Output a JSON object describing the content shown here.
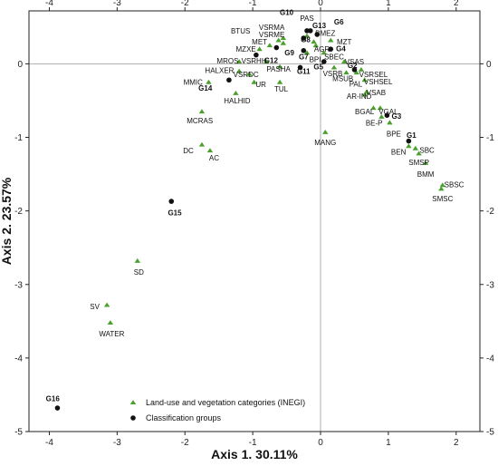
{
  "chart_data": {
    "type": "scatter",
    "xlabel": "Axis 1. 30.11%",
    "ylabel": "Axis 2. 23.57%",
    "xlim": [
      -4.3,
      2.35
    ],
    "ylim": [
      -5.0,
      0.72
    ],
    "xticks": [
      -4,
      -3,
      -2,
      -1,
      0,
      1,
      2
    ],
    "yticks": [
      -5,
      -4,
      -3,
      -2,
      -1,
      0
    ],
    "reference_lines": {
      "x": 0,
      "y": 0
    },
    "legend_position": "bottom-left",
    "colors": {
      "landuse": "#4aa02c",
      "group": "#111111",
      "refline": "#9a9a9a"
    },
    "series": [
      {
        "name": "Land-use and vegetation categories (INEGI)",
        "marker": "triangle",
        "points": [
          {
            "label": "PAS",
            "x": -0.2,
            "y": 0.38,
            "lx": -0.2,
            "ly": 0.62,
            "anchor": "middle"
          },
          {
            "label": "VSRMA",
            "x": -0.55,
            "y": 0.35,
            "lx": -0.72,
            "ly": 0.5,
            "anchor": "middle"
          },
          {
            "label": "VSRME",
            "x": -0.55,
            "y": 0.28,
            "lx": -0.72,
            "ly": 0.4,
            "anchor": "middle"
          },
          {
            "label": "BTUS",
            "x": -0.62,
            "y": 0.32,
            "lx": -1.18,
            "ly": 0.45,
            "anchor": "middle"
          },
          {
            "label": "BMEZ",
            "x": -0.1,
            "y": 0.3,
            "lx": 0.07,
            "ly": 0.42,
            "anchor": "middle"
          },
          {
            "label": "MET",
            "x": -0.75,
            "y": 0.25,
            "lx": -0.9,
            "ly": 0.3,
            "anchor": "middle"
          },
          {
            "label": "MZT",
            "x": 0.15,
            "y": 0.32,
            "lx": 0.35,
            "ly": 0.3,
            "anchor": "middle"
          },
          {
            "label": "AGR",
            "x": -0.07,
            "y": 0.25,
            "lx": 0.02,
            "ly": 0.2,
            "anchor": "middle"
          },
          {
            "label": "MZXE",
            "x": -0.9,
            "y": 0.2,
            "lx": -1.1,
            "ly": 0.2,
            "anchor": "middle"
          },
          {
            "label": "SBEC",
            "x": 0.05,
            "y": 0.15,
            "lx": 0.2,
            "ly": 0.1,
            "anchor": "middle"
          },
          {
            "label": "BPI",
            "x": -0.2,
            "y": 0.15,
            "lx": -0.08,
            "ly": 0.06,
            "anchor": "middle"
          },
          {
            "label": "VSAS",
            "x": 0.35,
            "y": 0.03,
            "lx": 0.5,
            "ly": 0.03,
            "anchor": "middle"
          },
          {
            "label": "MROS",
            "x": -1.2,
            "y": 0.03,
            "lx": -1.37,
            "ly": 0.04,
            "anchor": "middle"
          },
          {
            "label": "VSRHH",
            "x": -0.8,
            "y": 0.03,
            "lx": -0.98,
            "ly": 0.04,
            "anchor": "middle"
          },
          {
            "label": "PASHA",
            "x": -0.6,
            "y": -0.04,
            "lx": -0.62,
            "ly": -0.07,
            "anchor": "middle"
          },
          {
            "label": "VSRB",
            "x": 0.2,
            "y": -0.05,
            "lx": 0.18,
            "ly": -0.13,
            "anchor": "middle"
          },
          {
            "label": "VSRSEL",
            "x": 0.6,
            "y": -0.08,
            "lx": 0.78,
            "ly": -0.14,
            "anchor": "middle"
          },
          {
            "label": "MSUB",
            "x": 0.38,
            "y": -0.12,
            "lx": 0.33,
            "ly": -0.2,
            "anchor": "middle"
          },
          {
            "label": "PAL",
            "x": 0.53,
            "y": -0.12,
            "lx": 0.52,
            "ly": -0.27,
            "anchor": "middle"
          },
          {
            "label": "VSHSEL",
            "x": 0.65,
            "y": -0.22,
            "lx": 0.85,
            "ly": -0.24,
            "anchor": "middle"
          },
          {
            "label": "HALXER",
            "x": -1.2,
            "y": -0.1,
            "lx": -1.49,
            "ly": -0.09,
            "anchor": "middle"
          },
          {
            "label": "VSRDC",
            "x": -1.05,
            "y": -0.14,
            "lx": -1.1,
            "ly": -0.14,
            "anchor": "middle"
          },
          {
            "label": "UR",
            "x": -0.98,
            "y": -0.25,
            "lx": -0.88,
            "ly": -0.28,
            "anchor": "middle"
          },
          {
            "label": "TUL",
            "x": -0.6,
            "y": -0.25,
            "lx": -0.58,
            "ly": -0.34,
            "anchor": "middle"
          },
          {
            "label": "MMIC",
            "x": -1.65,
            "y": -0.25,
            "lx": -1.88,
            "ly": -0.25,
            "anchor": "middle"
          },
          {
            "label": "VSAB",
            "x": 0.68,
            "y": -0.38,
            "lx": 0.82,
            "ly": -0.39,
            "anchor": "middle"
          },
          {
            "label": "AR-IND",
            "x": 0.65,
            "y": -0.42,
            "lx": 0.57,
            "ly": -0.44,
            "anchor": "middle"
          },
          {
            "label": "HALHID",
            "x": -1.25,
            "y": -0.4,
            "lx": -1.23,
            "ly": -0.5,
            "anchor": "middle"
          },
          {
            "label": "MCRAS",
            "x": -1.75,
            "y": -0.65,
            "lx": -1.78,
            "ly": -0.77,
            "anchor": "middle"
          },
          {
            "label": "BGAL",
            "x": 0.78,
            "y": -0.6,
            "lx": 0.65,
            "ly": -0.65,
            "anchor": "middle"
          },
          {
            "label": "VGAL",
            "x": 0.88,
            "y": -0.6,
            "lx": 1.0,
            "ly": -0.65,
            "anchor": "middle"
          },
          {
            "label": "BE-P",
            "x": 0.9,
            "y": -0.72,
            "lx": 0.79,
            "ly": -0.8,
            "anchor": "middle"
          },
          {
            "label": "BPE",
            "x": 1.02,
            "y": -0.8,
            "lx": 1.08,
            "ly": -0.95,
            "anchor": "middle"
          },
          {
            "label": "MANG",
            "x": 0.07,
            "y": -0.93,
            "lx": 0.07,
            "ly": -1.07,
            "anchor": "middle"
          },
          {
            "label": "DC",
            "x": -1.75,
            "y": -1.1,
            "lx": -1.95,
            "ly": -1.18,
            "anchor": "middle"
          },
          {
            "label": "AC",
            "x": -1.63,
            "y": -1.18,
            "lx": -1.57,
            "ly": -1.28,
            "anchor": "middle"
          },
          {
            "label": "BEN",
            "x": 1.3,
            "y": -1.12,
            "lx": 1.15,
            "ly": -1.2,
            "anchor": "middle"
          },
          {
            "label": "SBC",
            "x": 1.4,
            "y": -1.15,
            "lx": 1.57,
            "ly": -1.17,
            "anchor": "middle"
          },
          {
            "label": "SMSP",
            "x": 1.45,
            "y": -1.22,
            "lx": 1.45,
            "ly": -1.34,
            "anchor": "middle"
          },
          {
            "label": "BMM",
            "x": 1.55,
            "y": -1.35,
            "lx": 1.55,
            "ly": -1.5,
            "anchor": "middle"
          },
          {
            "label": "SBSC",
            "x": 1.8,
            "y": -1.65,
            "lx": 1.97,
            "ly": -1.64,
            "anchor": "middle"
          },
          {
            "label": "SMSC",
            "x": 1.78,
            "y": -1.7,
            "lx": 1.8,
            "ly": -1.83,
            "anchor": "middle"
          },
          {
            "label": "SD",
            "x": -2.7,
            "y": -2.68,
            "lx": -2.68,
            "ly": -2.83,
            "anchor": "middle"
          },
          {
            "label": "SV",
            "x": -3.15,
            "y": -3.28,
            "lx": -3.33,
            "ly": -3.3,
            "anchor": "middle"
          },
          {
            "label": "WATER",
            "x": -3.1,
            "y": -3.52,
            "lx": -3.08,
            "ly": -3.67,
            "anchor": "middle"
          }
        ]
      },
      {
        "name": "Classification groups",
        "marker": "circle",
        "points": [
          {
            "label": "G10",
            "x": -0.2,
            "y": 0.45,
            "lx": -0.5,
            "ly": 0.7,
            "anchor": "middle"
          },
          {
            "label": "G13",
            "x": -0.15,
            "y": 0.45,
            "lx": -0.02,
            "ly": 0.52,
            "anchor": "middle"
          },
          {
            "label": "G6",
            "x": -0.05,
            "y": 0.4,
            "lx": 0.27,
            "ly": 0.57,
            "anchor": "middle"
          },
          {
            "label": "G8",
            "x": -0.25,
            "y": 0.35,
            "lx": -0.22,
            "ly": 0.33,
            "anchor": "middle"
          },
          {
            "label": "G9",
            "x": -0.65,
            "y": 0.22,
            "lx": -0.46,
            "ly": 0.15,
            "anchor": "middle"
          },
          {
            "label": "G4",
            "x": 0.15,
            "y": 0.2,
            "lx": 0.3,
            "ly": 0.21,
            "anchor": "middle"
          },
          {
            "label": "G12",
            "x": -0.95,
            "y": 0.12,
            "lx": -0.73,
            "ly": 0.05,
            "anchor": "middle"
          },
          {
            "label": "G7",
            "x": -0.25,
            "y": 0.18,
            "lx": -0.25,
            "ly": 0.1,
            "anchor": "middle"
          },
          {
            "label": "G5",
            "x": 0.05,
            "y": 0.03,
            "lx": -0.03,
            "ly": -0.04,
            "anchor": "middle"
          },
          {
            "label": "G11",
            "x": -0.3,
            "y": -0.05,
            "lx": -0.25,
            "ly": -0.1,
            "anchor": "middle"
          },
          {
            "label": "G2",
            "x": 0.5,
            "y": -0.08,
            "lx": 0.47,
            "ly": -0.02,
            "anchor": "middle"
          },
          {
            "label": "G14",
            "x": -1.35,
            "y": -0.22,
            "lx": -1.7,
            "ly": -0.33,
            "anchor": "middle"
          },
          {
            "label": "G3",
            "x": 0.98,
            "y": -0.7,
            "lx": 1.12,
            "ly": -0.71,
            "anchor": "middle"
          },
          {
            "label": "G1",
            "x": 1.3,
            "y": -1.05,
            "lx": 1.34,
            "ly": -0.97,
            "anchor": "middle"
          },
          {
            "label": "G15",
            "x": -2.2,
            "y": -1.87,
            "lx": -2.15,
            "ly": -2.02,
            "anchor": "middle"
          },
          {
            "label": "G16",
            "x": -3.88,
            "y": -4.68,
            "lx": -3.95,
            "ly": -4.55,
            "anchor": "middle"
          }
        ]
      }
    ]
  }
}
